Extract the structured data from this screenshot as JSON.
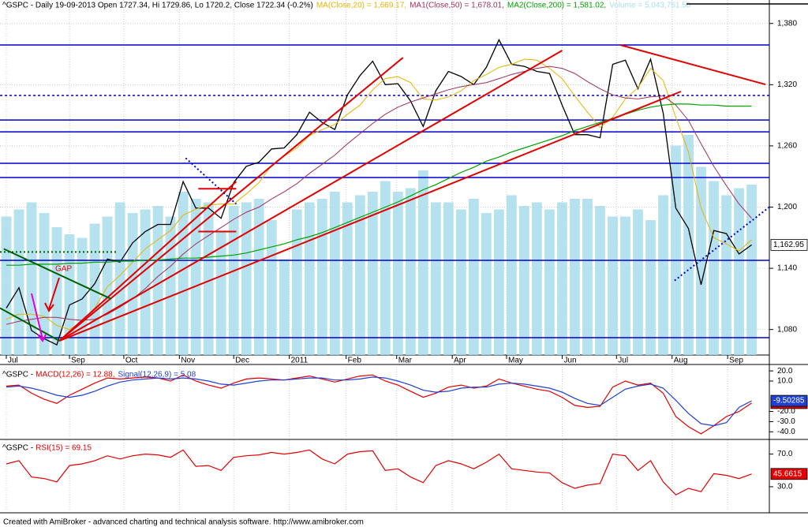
{
  "chart_data": [
    {
      "type": "line",
      "x": [
        -5,
        -4,
        -3,
        -2,
        -1,
        0,
        1,
        2,
        3,
        4,
        5,
        6,
        7,
        8,
        9,
        10,
        11,
        12,
        13,
        14,
        15,
        16,
        17,
        18,
        19,
        20,
        21,
        22,
        23,
        24,
        25,
        26,
        27,
        28,
        29,
        30,
        31,
        32,
        33,
        34,
        35,
        36,
        37,
        38,
        39,
        40,
        41,
        42,
        43,
        44,
        45,
        46,
        47,
        48,
        49,
        50,
        51,
        52,
        53,
        54
      ],
      "xlim": [
        -5.5,
        55.4
      ],
      "xticks": [
        {
          "value": -5,
          "label": "Jul"
        },
        {
          "value": 0,
          "label": "Sep"
        },
        {
          "value": 4.3,
          "label": "Oct"
        },
        {
          "value": 8.7,
          "label": "Nov"
        },
        {
          "value": 13,
          "label": "Dec"
        },
        {
          "value": 17.4,
          "label": "2011"
        },
        {
          "value": 21.9,
          "label": "Feb"
        },
        {
          "value": 25.9,
          "label": "Mar"
        },
        {
          "value": 30.3,
          "label": "Apr"
        },
        {
          "value": 34.6,
          "label": "May"
        },
        {
          "value": 39,
          "label": "Jun"
        },
        {
          "value": 43.3,
          "label": "Jul"
        },
        {
          "value": 47.7,
          "label": "Aug"
        },
        {
          "value": 52.1,
          "label": "Sep"
        }
      ],
      "ylim": [
        1055,
        1403
      ],
      "yticks": [
        {
          "value": 1080,
          "label": "1,080"
        },
        {
          "value": 1140,
          "label": "1,140"
        },
        {
          "value": 1200,
          "label": "1,200"
        },
        {
          "value": 1260,
          "label": "1,260"
        },
        {
          "value": 1320,
          "label": "1,320"
        },
        {
          "value": 1380,
          "label": "1,380"
        }
      ],
      "grid": true,
      "series": [
        {
          "name": "^GSPC - Daily 19-09-2013 Open 1727.34, Hi 1729.86, Lo 1720.2, Close 1722.34 (-0.2%)",
          "color": "#000000",
          "values": [
            1101,
            1121,
            1079,
            1071,
            1065,
            1104,
            1110,
            1125,
            1149,
            1146,
            1165,
            1176,
            1183,
            1183,
            1225,
            1199,
            1199,
            1189,
            1224,
            1240,
            1244,
            1257,
            1258,
            1271,
            1293,
            1283,
            1276,
            1310,
            1329,
            1343,
            1320,
            1321,
            1304,
            1279,
            1314,
            1333,
            1328,
            1320,
            1337,
            1364,
            1340,
            1338,
            1333,
            1331,
            1300,
            1271,
            1271,
            1268,
            1340,
            1344,
            1316,
            1345,
            1292,
            1199,
            1179,
            1124,
            1177,
            1174,
            1154,
            1162.95
          ]
        },
        {
          "name": "MA(Close,20) = 1,669.17,",
          "color": "#e6b400",
          "values": [
            1090,
            1095,
            1095,
            1093,
            1084,
            1080,
            1088,
            1101,
            1122,
            1133,
            1146,
            1159,
            1168,
            1177,
            1192,
            1198,
            1202,
            1203,
            1203,
            1213,
            1224,
            1241,
            1250,
            1258,
            1270,
            1276,
            1281,
            1291,
            1300,
            1315,
            1326,
            1328,
            1322,
            1306,
            1305,
            1308,
            1314,
            1324,
            1330,
            1337,
            1340,
            1345,
            1344,
            1336,
            1326,
            1309,
            1293,
            1278,
            1288,
            1306,
            1317,
            1336,
            1324,
            1288,
            1254,
            1199,
            1170,
            1164,
            1157,
            1168
          ]
        },
        {
          "name": "MA1(Close,50) = 1,678.01,",
          "color": "#a0305a",
          "values": [
            1085,
            1088,
            1090,
            1092,
            1092,
            1090,
            1089,
            1090,
            1095,
            1102,
            1110,
            1120,
            1132,
            1142,
            1154,
            1164,
            1172,
            1180,
            1188,
            1195,
            1200,
            1208,
            1215,
            1223,
            1233,
            1242,
            1251,
            1262,
            1272,
            1282,
            1291,
            1298,
            1303,
            1307,
            1311,
            1315,
            1318,
            1320,
            1322,
            1326,
            1330,
            1333,
            1336,
            1338,
            1336,
            1331,
            1323,
            1316,
            1310,
            1307,
            1306,
            1308,
            1309,
            1300,
            1285,
            1262,
            1240,
            1221,
            1203,
            1189
          ]
        },
        {
          "name": "MA2(Close,200) = 1,581.02,",
          "color": "#00a000",
          "values": [
            1143,
            1143,
            1144,
            1144,
            1144,
            1145,
            1145,
            1146,
            1146,
            1147,
            1147,
            1148,
            1148,
            1149,
            1150,
            1150,
            1151,
            1152,
            1153,
            1155,
            1158,
            1161,
            1164,
            1168,
            1171,
            1175,
            1180,
            1185,
            1190,
            1195,
            1200,
            1205,
            1211,
            1217,
            1222,
            1228,
            1234,
            1239,
            1245,
            1249,
            1254,
            1258,
            1262,
            1266,
            1270,
            1275,
            1279,
            1283,
            1287,
            1291,
            1295,
            1298,
            1300,
            1301,
            1301,
            1300,
            1300,
            1299,
            1299,
            1299
          ]
        }
      ],
      "volume": {
        "name": "Volume = 5,043,751.50",
        "color": "#a9dcec",
        "vlim": [
          0,
          10000
        ],
        "values": [
          3900,
          4100,
          4300,
          4000,
          3600,
          3400,
          3300,
          3700,
          3900,
          4300,
          4000,
          4100,
          4200,
          3900,
          4600,
          4400,
          4300,
          3500,
          4200,
          4300,
          4400,
          3800,
          2700,
          4100,
          4300,
          4400,
          4600,
          4300,
          4500,
          4600,
          4900,
          4600,
          4700,
          5200,
          4300,
          4300,
          4100,
          4400,
          4000,
          4100,
          4500,
          4200,
          4300,
          4100,
          4300,
          4400,
          4400,
          4200,
          3900,
          3900,
          4100,
          3800,
          4500,
          5900,
          6200,
          5300,
          4900,
          4500,
          4700,
          4800
        ]
      },
      "last_value_label": "1,162.95",
      "hlines": [
        {
          "value": 1358.9,
          "color": "#0000cc",
          "dotted": false
        },
        {
          "value": 1309.4,
          "color": "#0000cc",
          "dotted": true
        },
        {
          "value": 1285.4,
          "color": "#0000cc",
          "dotted": false
        },
        {
          "value": 1273.8,
          "color": "#0000cc",
          "dotted": false
        },
        {
          "value": 1242.9,
          "color": "#0000cc",
          "dotted": false
        },
        {
          "value": 1229,
          "color": "#0000cc",
          "dotted": false
        },
        {
          "value": 1147.8,
          "color": "#0000cc",
          "dotted": false
        },
        {
          "value": 1072,
          "color": "#0000cc",
          "dotted": false
        }
      ],
      "trendlines": [
        {
          "color": "#e00000",
          "dotted": false,
          "x": [
            -0.8,
            26.4
          ],
          "y": [
            1068.9,
            1346.5
          ]
        },
        {
          "color": "#e00000",
          "dotted": false,
          "x": [
            -0.8,
            39
          ],
          "y": [
            1068.9,
            1353.5
          ]
        },
        {
          "color": "#e00000",
          "dotted": false,
          "x": [
            -0.8,
            48.4
          ],
          "y": [
            1068.9,
            1313.3
          ]
        },
        {
          "color": "#e00000",
          "dotted": false,
          "x": [
            -0.8,
            13.2
          ],
          "y": [
            1068.9,
            1225
          ]
        },
        {
          "color": "#e00000",
          "dotted": false,
          "x": [
            43.6,
            55.1
          ],
          "y": [
            1358.9,
            1320.2
          ]
        },
        {
          "color": "#006000",
          "dotted": false,
          "x": [
            -5.2,
            3.3
          ],
          "y": [
            1159,
            1110
          ]
        },
        {
          "color": "#006000",
          "dotted": false,
          "x": [
            -5.5,
            -0.8
          ],
          "y": [
            1101,
            1068.9
          ]
        },
        {
          "color": "#006000",
          "dotted": true,
          "x": [
            -5.5,
            3.7
          ],
          "y": [
            1156,
            1156
          ]
        },
        {
          "color": "#0000cc",
          "dotted": true,
          "x": [
            9.2,
            13.2
          ],
          "y": [
            1248,
            1203
          ]
        },
        {
          "color": "#0000cc",
          "dotted": true,
          "x": [
            47.9,
            55.4
          ],
          "y": [
            1128,
            1200
          ]
        },
        {
          "color": "#e00000",
          "dotted": false,
          "x": [
            10.2,
            13.2
          ],
          "y": [
            1218,
            1218
          ]
        },
        {
          "color": "#e00000",
          "dotted": false,
          "x": [
            10.2,
            13.2
          ],
          "y": [
            1176,
            1176
          ]
        }
      ],
      "annotations": [
        "GAP"
      ]
    },
    {
      "type": "line",
      "title": "^GSPC - ",
      "ylim": [
        -46,
        24
      ],
      "yticks": [
        {
          "value": 20,
          "label": "20.0"
        },
        {
          "value": 10,
          "label": "10.0"
        },
        {
          "value": -20,
          "label": "-20.0"
        },
        {
          "value": -30,
          "label": "-30.0"
        },
        {
          "value": -40,
          "label": "-40.0"
        }
      ],
      "series": [
        {
          "name": "MACD(12,26) = 12.88,",
          "color": "#e00000",
          "values": [
            5,
            6,
            -2,
            -8,
            -12,
            -4,
            2,
            8,
            13,
            12,
            13,
            14,
            13,
            10,
            16,
            10,
            6,
            3,
            8,
            12,
            13,
            12,
            11,
            13,
            15,
            12,
            9,
            12,
            15,
            16,
            10,
            6,
            0,
            -6,
            -2,
            4,
            6,
            3,
            5,
            12,
            8,
            5,
            2,
            0,
            -6,
            -14,
            -16,
            -15,
            4,
            10,
            6,
            8,
            -2,
            -25,
            -35,
            -42,
            -34,
            -25,
            -20,
            -11.6819
          ]
        },
        {
          "name": "Signal(12,26,9) = 5.08",
          "color": "#2040d0",
          "values": [
            4,
            5,
            3,
            0,
            -4,
            -6,
            -4,
            0,
            5,
            9,
            11,
            12,
            13,
            12,
            13,
            12,
            10,
            7,
            6,
            8,
            10,
            11,
            11,
            12,
            13,
            13,
            11,
            11,
            12,
            14,
            13,
            10,
            6,
            1,
            -1,
            0,
            3,
            4,
            4,
            7,
            8,
            7,
            5,
            3,
            -1,
            -7,
            -12,
            -14,
            -6,
            2,
            5,
            7,
            3,
            -9,
            -22,
            -32,
            -34,
            -31,
            -16,
            -9.50285
          ]
        }
      ]
    },
    {
      "type": "line",
      "title": "^GSPC - ",
      "ylim": [
        0,
        87
      ],
      "yticks": [
        {
          "value": 70,
          "label": "70.0"
        },
        {
          "value": 30,
          "label": "30.0"
        }
      ],
      "series": [
        {
          "name": "RSI(15) = 69.15",
          "color": "#e00000",
          "values": [
            58,
            62,
            42,
            40,
            36,
            56,
            58,
            62,
            68,
            64,
            68,
            70,
            69,
            66,
            75,
            55,
            56,
            50,
            66,
            68,
            69,
            72,
            70,
            72,
            75,
            64,
            58,
            70,
            73,
            74,
            50,
            52,
            42,
            35,
            56,
            62,
            58,
            52,
            60,
            70,
            52,
            50,
            48,
            47,
            35,
            28,
            32,
            34,
            70,
            68,
            50,
            62,
            36,
            20,
            28,
            24,
            46,
            44,
            40,
            45.6615
          ]
        }
      ]
    }
  ],
  "footer": "Created with AmiBroker - advanced charting and technical analysis software. http://www.amibroker.com"
}
